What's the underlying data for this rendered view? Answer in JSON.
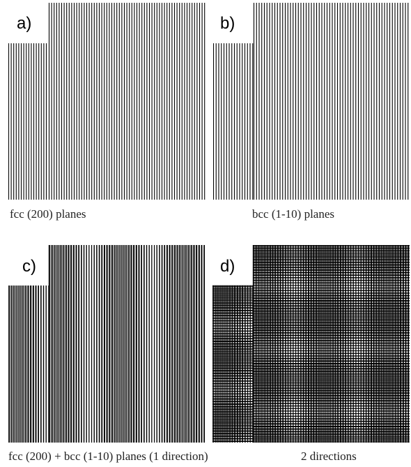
{
  "figure": {
    "panels": [
      {
        "label": "a)",
        "caption": "fcc (200) planes",
        "pattern": "single vertical line set (fcc 200)",
        "line_color": "#000000"
      },
      {
        "label": "b)",
        "caption": "bcc (1-10) planes",
        "pattern": "single vertical line set (bcc 1-10)",
        "line_color": "#000000"
      },
      {
        "label": "c)",
        "caption": "fcc (200) + bcc (1-10) planes (1 direction)",
        "pattern": "superposition of both line sets, one direction (moire)",
        "line_color": "#000000"
      },
      {
        "label": "d)",
        "caption": "2 directions",
        "pattern": "superposition in two directions (grid moire)",
        "line_color": "#000000"
      }
    ]
  }
}
